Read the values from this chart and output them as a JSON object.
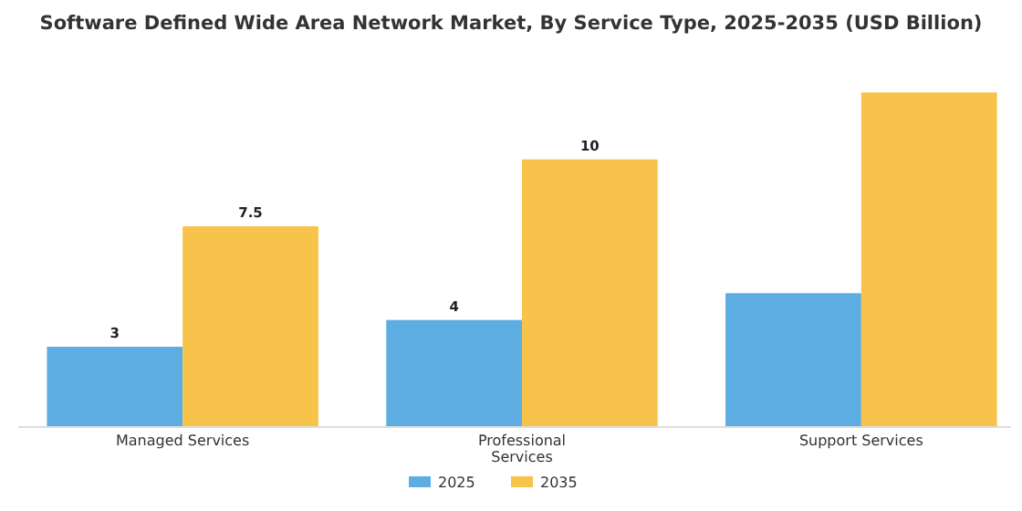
{
  "chart_data": {
    "type": "bar",
    "title": "Software Defined Wide Area Network Market, By Service Type, 2025-2035 (USD Billion)",
    "categories": [
      "Managed Services",
      "Professional Services",
      "Support Services"
    ],
    "series": [
      {
        "name": "2025",
        "color": "#5dade2",
        "values": [
          3,
          4,
          5
        ],
        "value_labels": [
          "3",
          "4",
          null
        ]
      },
      {
        "name": "2035",
        "color": "#f7c34a",
        "values": [
          7.5,
          10,
          12.5
        ],
        "value_labels": [
          "7.5",
          "10",
          null
        ]
      }
    ],
    "tick_labels": "x",
    "legend": "bottom"
  }
}
